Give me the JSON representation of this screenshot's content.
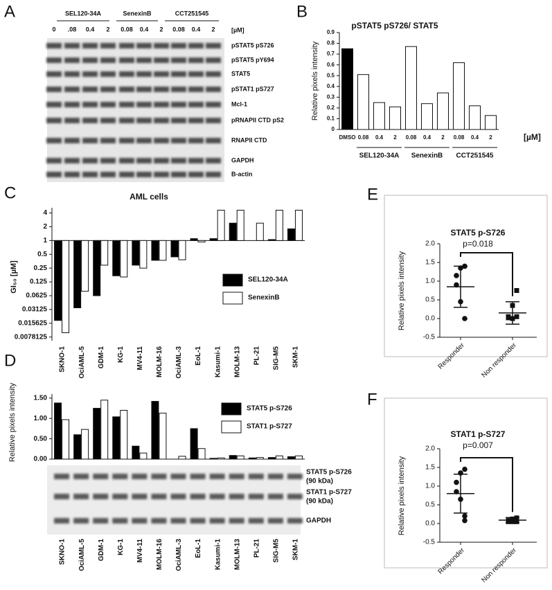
{
  "panel_labels": [
    "A",
    "B",
    "C",
    "D",
    "E",
    "F"
  ],
  "blot_a": {
    "groups": [
      "SEL120-34A",
      "SenexinB",
      "CCT251545"
    ],
    "doses": [
      "0",
      ".08",
      "0.4",
      "2",
      "0.08",
      "0.4",
      "2",
      "0.08",
      "0.4",
      "2"
    ],
    "unit": "[µM]",
    "rows": [
      "pSTAT5 pS726",
      "pSTAT5 pY694",
      "STAT5",
      "pSTAT1 pS727",
      "Mcl-1",
      "pRNAPII CTD pS2",
      "RNAPII CTD",
      "GAPDH",
      "B-actin"
    ]
  },
  "chart_data": [
    {
      "type": "bar",
      "title": "pSTAT5 pS726/ STAT5",
      "y_label": "Relative pixels intensity",
      "categories": [
        "DMSO",
        "0.08",
        "0.4",
        "2",
        "0.08",
        "0.4",
        "2",
        "0.08",
        "0.4",
        "2"
      ],
      "values": [
        0.75,
        0.51,
        0.25,
        0.21,
        0.77,
        0.24,
        0.34,
        0.62,
        0.22,
        0.13
      ],
      "colors": [
        "#000000",
        "#ffffff",
        "#ffffff",
        "#ffffff",
        "#ffffff",
        "#ffffff",
        "#ffffff",
        "#ffffff",
        "#ffffff",
        "#ffffff"
      ],
      "group_labels": [
        "SEL120-34A",
        "SenexinB",
        "CCT251545"
      ],
      "unit": "[µM]",
      "ylim": [
        0,
        0.9
      ],
      "yticks": [
        0,
        0.1,
        0.2,
        0.3,
        0.4,
        0.5,
        0.6,
        0.7,
        0.8,
        0.9
      ]
    },
    {
      "type": "bar",
      "title": "AML cells",
      "y_label": "GI₅₀ [µM]",
      "log_scale": true,
      "categories": [
        "SKNO-1",
        "OciAML-5",
        "GDM-1",
        "KG-1",
        "MV4-11",
        "MOLM-16",
        "OciAML-3",
        "EoL-1",
        "Kasumi-1",
        "MOLM-13",
        "PL-21",
        "SIG-M5",
        "SKM-1"
      ],
      "series": [
        {
          "name": "SEL120-34A",
          "color": "#000000",
          "values": [
            0.018,
            0.034,
            0.0625,
            0.17,
            0.29,
            0.37,
            0.44,
            1.1,
            1.1,
            2.4,
            1,
            1.05,
            1.8
          ]
        },
        {
          "name": "SenexinB",
          "color": "#ffffff",
          "values": [
            0.0097,
            0.078,
            0.29,
            0.16,
            0.25,
            0.37,
            0.38,
            0.93,
            4.6,
            4.6,
            2.4,
            4.6,
            4.6
          ]
        }
      ],
      "ylim": [
        0.0065,
        5.2
      ],
      "yticks": [
        4,
        2,
        1,
        0.5,
        0.25,
        0.125,
        0.0625,
        0.03125,
        0.015625,
        0.0078125
      ],
      "legend": "right"
    },
    {
      "type": "bar",
      "y_label": "Relative pixels intensity",
      "categories": [
        "SKNO-1",
        "OciAML-5",
        "GDM-1",
        "KG-1",
        "MV4-11",
        "MOLM-16",
        "OciAML-3",
        "EoL-1",
        "Kasumi-1",
        "MOLM-13",
        "PL-21",
        "SIG-M5",
        "SKM-1"
      ],
      "series": [
        {
          "name": "STAT5 p-S726",
          "color": "#000000",
          "values": [
            1.38,
            0.6,
            1.25,
            1.04,
            0.32,
            1.42,
            0,
            0.75,
            0.02,
            0.09,
            0.03,
            0.04,
            0.06
          ]
        },
        {
          "name": "STAT1 p-S727",
          "color": "#ffffff",
          "values": [
            0.97,
            0.73,
            1.45,
            1.2,
            0.15,
            1.13,
            0.07,
            0.26,
            0.03,
            0.08,
            0.04,
            0.08,
            0.08
          ]
        }
      ],
      "ylim": [
        0,
        1.6
      ],
      "yticks": [
        {
          "value": 0,
          "label": "0.00"
        },
        {
          "value": 0.5,
          "label": "0.50"
        },
        {
          "value": 1,
          "label": "1.00"
        },
        {
          "value": 1.5,
          "label": "1.50"
        }
      ],
      "legend": "right"
    },
    {
      "type": "scatter",
      "title": "STAT5 p-S726",
      "annotation": "p=0.018",
      "y_label": "Relative pixels intensity",
      "categories": [
        "Responder",
        "Non responder"
      ],
      "groups": [
        {
          "values": [
            1.4,
            1.35,
            1.15,
            0.9,
            0.45,
            0.0
          ],
          "mean": 0.85,
          "sd": 0.55,
          "marker": "circle"
        },
        {
          "values": [
            0.75,
            0.35,
            0.05,
            0.02,
            0.0,
            0.05
          ],
          "mean": 0.15,
          "sd": 0.3,
          "marker": "square"
        }
      ],
      "ylim": [
        -0.5,
        2
      ],
      "yticks": [
        -0.5,
        {
          "value": 0,
          "label": "0.0"
        },
        0.5,
        {
          "value": 1,
          "label": "1.0"
        },
        1.5,
        {
          "value": 2,
          "label": "2.0"
        }
      ]
    },
    {
      "type": "scatter",
      "title": "STAT1 p-S727",
      "annotation": "p=0.007",
      "y_label": "Relative pixels intensity",
      "categories": [
        "Responder",
        "Non responder"
      ],
      "groups": [
        {
          "values": [
            1.45,
            1.35,
            1.1,
            0.85,
            0.65,
            0.2,
            0.08
          ],
          "mean": 0.8,
          "sd": 0.52,
          "marker": "circle"
        },
        {
          "values": [
            0.15,
            0.12,
            0.08,
            0.05,
            0.05,
            0.05,
            0.1
          ],
          "mean": 0.09,
          "sd": 0.07,
          "marker": "square"
        }
      ],
      "ylim": [
        -0.5,
        2
      ],
      "yticks": [
        -0.5,
        {
          "value": 0,
          "label": "0.0"
        },
        0.5,
        {
          "value": 1,
          "label": "1.0"
        },
        1.5,
        {
          "value": 2,
          "label": "2.0"
        }
      ]
    }
  ],
  "blot_d": {
    "rows": [
      [
        "STAT5 p-S726",
        "(90 kDa)"
      ],
      [
        "STAT1 p-S727",
        "(90 kDa)"
      ],
      [
        "GAPDH"
      ]
    ]
  }
}
